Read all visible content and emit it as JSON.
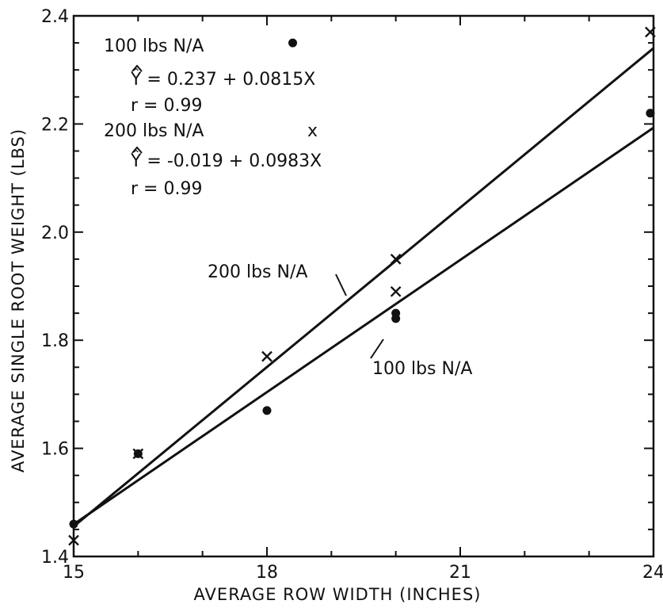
{
  "chart_data": {
    "type": "scatter",
    "xlabel": "AVERAGE ROW WIDTH (INCHES)",
    "ylabel": "AVERAGE SINGLE ROOT WEIGHT (LBS)",
    "xlim": [
      15,
      24
    ],
    "ylim": [
      1.4,
      2.4
    ],
    "xticks": [
      "15",
      "18",
      "21",
      "24"
    ],
    "yticks": [
      "1.4",
      "1.6",
      "1.8",
      "2.0",
      "2.2",
      "2.4"
    ],
    "grid": false,
    "series": [
      {
        "name": "100 lbs N/A",
        "marker": "dot",
        "points": [
          [
            15,
            1.46
          ],
          [
            16,
            1.59
          ],
          [
            18,
            1.67
          ],
          [
            18.4,
            2.35
          ],
          [
            20,
            1.85
          ],
          [
            20,
            1.84
          ],
          [
            23.95,
            2.22
          ]
        ],
        "fit": {
          "intercept": 0.237,
          "slope": 0.0815,
          "x_range": [
            15,
            24
          ]
        },
        "line_label": "100 lbs N/A"
      },
      {
        "name": "200 lbs N/A",
        "marker": "x",
        "points": [
          [
            15,
            1.43
          ],
          [
            16,
            1.59
          ],
          [
            18,
            1.77
          ],
          [
            20,
            1.95
          ],
          [
            20,
            1.89
          ],
          [
            23.95,
            2.37
          ]
        ],
        "fit": {
          "intercept": -0.019,
          "slope": 0.0983,
          "x_range": [
            15,
            24
          ]
        },
        "line_label": "200 lbs N/A"
      }
    ],
    "annotations": [
      "100 lbs N/A",
      "Ŷ = 0.237 + 0.0815X",
      "r = 0.99",
      "200 lbs N/A",
      "x",
      "Ŷ = -0.019 + 0.0983X",
      "r = 0.99"
    ]
  }
}
